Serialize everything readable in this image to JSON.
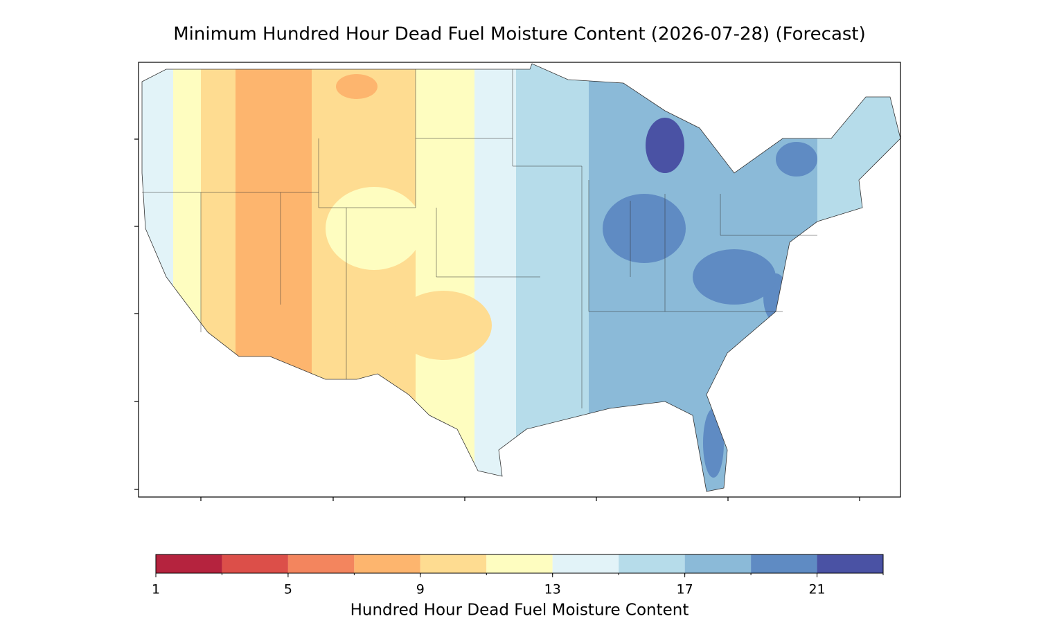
{
  "map": {
    "title": "Minimum Hundred Hour Dead Fuel Moisture Content (2026-07-28) (Forecast)",
    "colorbar": {
      "label": "Hundred Hour Dead Fuel Moisture Content",
      "range": [
        1,
        23
      ],
      "boundaries": [
        1,
        3,
        5,
        7,
        9,
        11,
        13,
        15,
        17,
        19,
        21,
        23
      ],
      "colors": [
        "#b5233e",
        "#dc4f49",
        "#f3855e",
        "#fdb56e",
        "#fedc91",
        "#fefdc0",
        "#e2f3f8",
        "#b6dcea",
        "#8bbad8",
        "#5f8bc3",
        "#4a52a4"
      ],
      "ticks": [
        1,
        5,
        9,
        13,
        17,
        21
      ]
    }
  }
}
